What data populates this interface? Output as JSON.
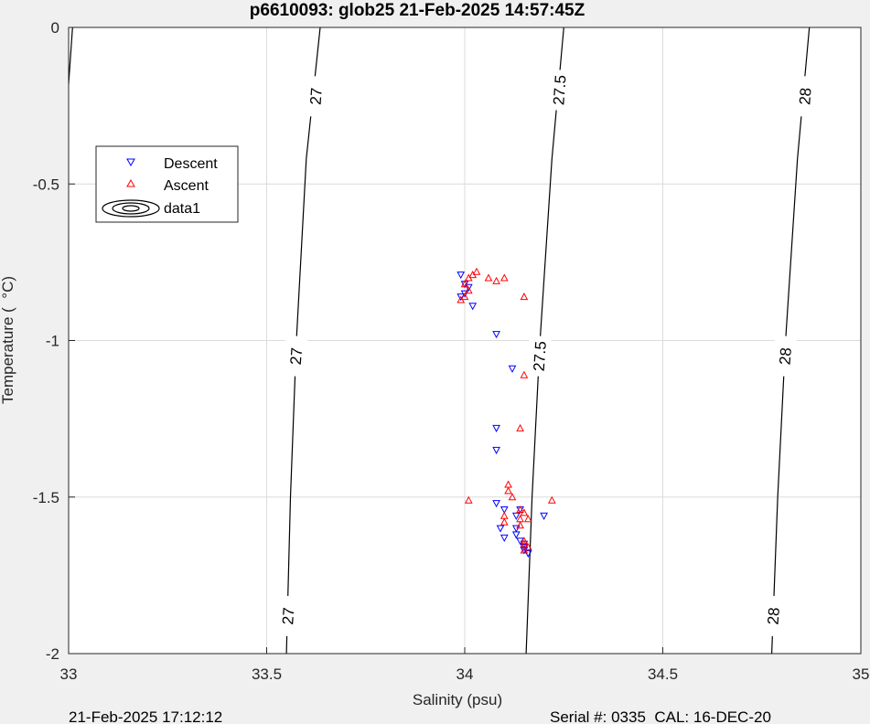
{
  "chart_data": {
    "type": "scatter",
    "title": "p6610093: glob25 21-Feb-2025 14:57:45Z",
    "xlabel": "Salinity (psu)",
    "ylabel": "Temperature (  °C)",
    "xlim": [
      33,
      35
    ],
    "ylim": [
      -2,
      0
    ],
    "x_ticks": [
      "33",
      "33.5",
      "34",
      "34.5",
      "35"
    ],
    "y_ticks": [
      "0",
      "-0.5",
      "-1",
      "-1.5",
      "-2"
    ],
    "grid": true,
    "legend_position": "top-left",
    "legend": [
      "Descent",
      "Ascent",
      "data1"
    ],
    "series": [
      {
        "name": "Descent",
        "marker": "triangle-down",
        "color": "#0000ff",
        "points": [
          [
            33.99,
            -0.79
          ],
          [
            34.0,
            -0.82
          ],
          [
            34.01,
            -0.83
          ],
          [
            34.0,
            -0.85
          ],
          [
            33.99,
            -0.86
          ],
          [
            34.02,
            -0.89
          ],
          [
            34.08,
            -0.98
          ],
          [
            34.12,
            -1.09
          ],
          [
            34.08,
            -1.28
          ],
          [
            34.08,
            -1.35
          ],
          [
            34.08,
            -1.52
          ],
          [
            34.1,
            -1.54
          ],
          [
            34.14,
            -1.54
          ],
          [
            34.13,
            -1.56
          ],
          [
            34.2,
            -1.56
          ],
          [
            34.09,
            -1.6
          ],
          [
            34.13,
            -1.6
          ],
          [
            34.13,
            -1.62
          ],
          [
            34.1,
            -1.63
          ],
          [
            34.14,
            -1.64
          ],
          [
            34.15,
            -1.65
          ],
          [
            34.15,
            -1.66
          ],
          [
            34.15,
            -1.67
          ],
          [
            34.16,
            -1.68
          ]
        ]
      },
      {
        "name": "Ascent",
        "marker": "triangle-up",
        "color": "#ff0000",
        "points": [
          [
            34.03,
            -0.78
          ],
          [
            34.02,
            -0.79
          ],
          [
            34.01,
            -0.8
          ],
          [
            34.06,
            -0.8
          ],
          [
            34.1,
            -0.8
          ],
          [
            34.08,
            -0.81
          ],
          [
            34.0,
            -0.82
          ],
          [
            34.01,
            -0.84
          ],
          [
            34.15,
            -0.86
          ],
          [
            34.0,
            -0.86
          ],
          [
            33.99,
            -0.87
          ],
          [
            34.15,
            -1.11
          ],
          [
            34.14,
            -1.28
          ],
          [
            34.11,
            -1.46
          ],
          [
            34.11,
            -1.48
          ],
          [
            34.12,
            -1.5
          ],
          [
            34.01,
            -1.51
          ],
          [
            34.22,
            -1.51
          ],
          [
            34.14,
            -1.54
          ],
          [
            34.15,
            -1.55
          ],
          [
            34.1,
            -1.56
          ],
          [
            34.14,
            -1.57
          ],
          [
            34.16,
            -1.57
          ],
          [
            34.1,
            -1.58
          ],
          [
            34.14,
            -1.59
          ],
          [
            34.15,
            -1.64
          ],
          [
            34.15,
            -1.65
          ],
          [
            34.16,
            -1.66
          ],
          [
            34.15,
            -1.67
          ]
        ]
      }
    ],
    "contours": [
      {
        "level": "27",
        "points": [
          [
            33.635,
            0
          ],
          [
            33.6,
            -0.42
          ],
          [
            33.575,
            -1.0
          ],
          [
            33.56,
            -1.5
          ],
          [
            33.55,
            -2.0
          ]
        ],
        "labels": [
          {
            "x": 33.625,
            "y": -0.22
          },
          {
            "x": 33.575,
            "y": -1.05
          },
          {
            "x": 33.555,
            "y": -1.88
          }
        ]
      },
      {
        "level": "27.5",
        "points": [
          [
            34.25,
            0
          ],
          [
            34.22,
            -0.42
          ],
          [
            34.19,
            -1.0
          ],
          [
            34.17,
            -1.5
          ],
          [
            34.155,
            -2.0
          ]
        ],
        "labels": [
          {
            "x": 34.24,
            "y": -0.2
          },
          {
            "x": 34.19,
            "y": -1.05
          }
        ]
      },
      {
        "level": "28",
        "points": [
          [
            34.87,
            0
          ],
          [
            34.84,
            -0.42
          ],
          [
            34.81,
            -1.0
          ],
          [
            34.79,
            -1.5
          ],
          [
            34.775,
            -2.0
          ]
        ],
        "labels": [
          {
            "x": 34.86,
            "y": -0.22
          },
          {
            "x": 34.81,
            "y": -1.05
          },
          {
            "x": 34.78,
            "y": -1.88
          }
        ]
      }
    ],
    "edge_contour": {
      "points": [
        [
          33.01,
          0
        ],
        [
          33.0,
          -0.18
        ]
      ]
    }
  },
  "footer": {
    "left": "21-Feb-2025 17:12:12",
    "right": "Serial #: 0335  CAL: 16-DEC-20"
  }
}
